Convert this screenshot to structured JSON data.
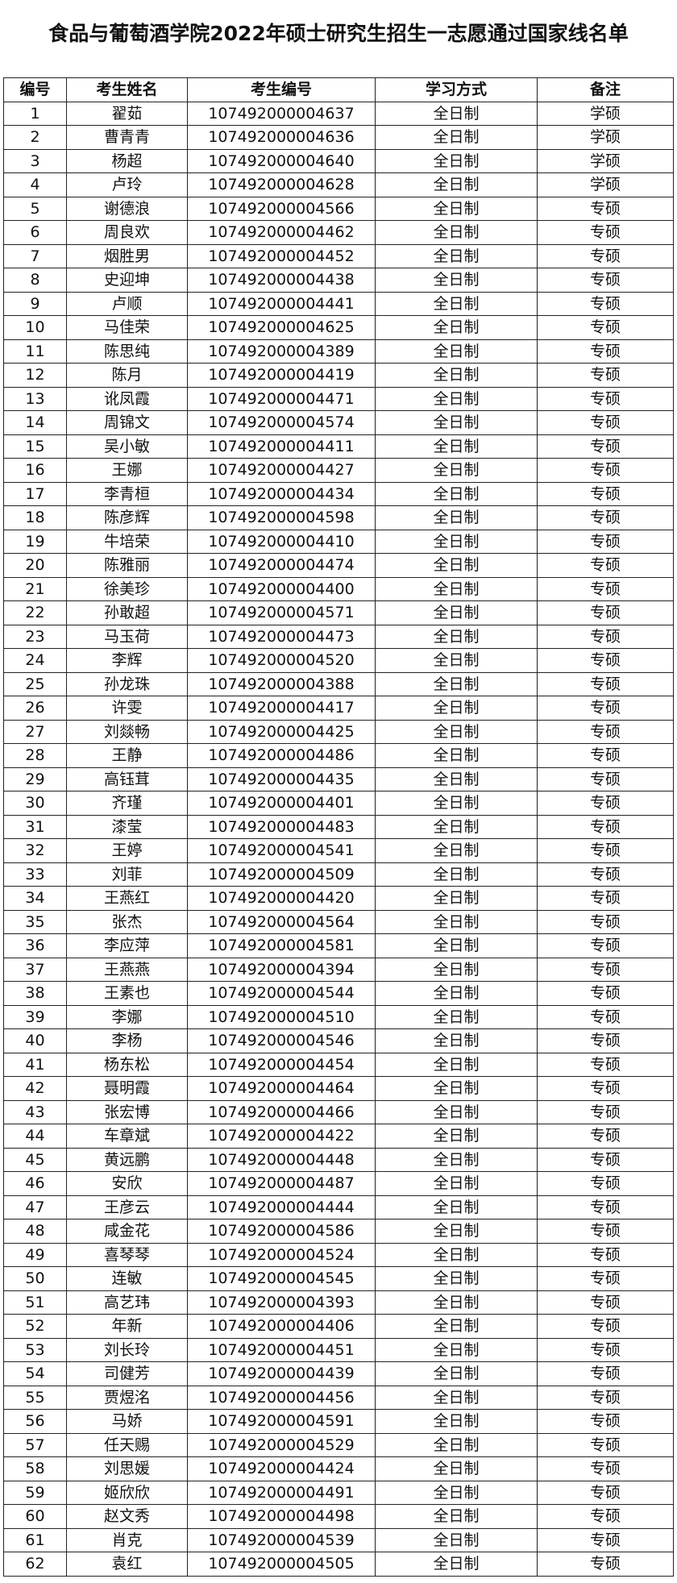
{
  "title": "食品与葡萄酒学院2022年硕士研究生招生一志愿通过国家线名单",
  "table": {
    "header": [
      "编号",
      "考生姓名",
      "考生编号",
      "学习方式",
      "备注"
    ],
    "rows": [
      [
        "1",
        "翟茹",
        "107492000004637",
        "全日制",
        "学硕"
      ],
      [
        "2",
        "曹青青",
        "107492000004636",
        "全日制",
        "学硕"
      ],
      [
        "3",
        "杨超",
        "107492000004640",
        "全日制",
        "学硕"
      ],
      [
        "4",
        "卢玲",
        "107492000004628",
        "全日制",
        "学硕"
      ],
      [
        "5",
        "谢德浪",
        "107492000004566",
        "全日制",
        "专硕"
      ],
      [
        "6",
        "周良欢",
        "107492000004462",
        "全日制",
        "专硕"
      ],
      [
        "7",
        "烟胜男",
        "107492000004452",
        "全日制",
        "专硕"
      ],
      [
        "8",
        "史迎坤",
        "107492000004438",
        "全日制",
        "专硕"
      ],
      [
        "9",
        "卢顺",
        "107492000004441",
        "全日制",
        "专硕"
      ],
      [
        "10",
        "马佳荣",
        "107492000004625",
        "全日制",
        "专硕"
      ],
      [
        "11",
        "陈思纯",
        "107492000004389",
        "全日制",
        "专硕"
      ],
      [
        "12",
        "陈月",
        "107492000004419",
        "全日制",
        "专硕"
      ],
      [
        "13",
        "讹凤霞",
        "107492000004471",
        "全日制",
        "专硕"
      ],
      [
        "14",
        "周锦文",
        "107492000004574",
        "全日制",
        "专硕"
      ],
      [
        "15",
        "吴小敏",
        "107492000004411",
        "全日制",
        "专硕"
      ],
      [
        "16",
        "王娜",
        "107492000004427",
        "全日制",
        "专硕"
      ],
      [
        "17",
        "李青桓",
        "107492000004434",
        "全日制",
        "专硕"
      ],
      [
        "18",
        "陈彦辉",
        "107492000004598",
        "全日制",
        "专硕"
      ],
      [
        "19",
        "牛培荣",
        "107492000004410",
        "全日制",
        "专硕"
      ],
      [
        "20",
        "陈雅丽",
        "107492000004474",
        "全日制",
        "专硕"
      ],
      [
        "21",
        "徐美珍",
        "107492000004400",
        "全日制",
        "专硕"
      ],
      [
        "22",
        "孙敢超",
        "107492000004571",
        "全日制",
        "专硕"
      ],
      [
        "23",
        "马玉荷",
        "107492000004473",
        "全日制",
        "专硕"
      ],
      [
        "24",
        "李辉",
        "107492000004520",
        "全日制",
        "专硕"
      ],
      [
        "25",
        "孙龙珠",
        "107492000004388",
        "全日制",
        "专硕"
      ],
      [
        "26",
        "许雯",
        "107492000004417",
        "全日制",
        "专硕"
      ],
      [
        "27",
        "刘燚畅",
        "107492000004425",
        "全日制",
        "专硕"
      ],
      [
        "28",
        "王静",
        "107492000004486",
        "全日制",
        "专硕"
      ],
      [
        "29",
        "高钰茸",
        "107492000004435",
        "全日制",
        "专硕"
      ],
      [
        "30",
        "齐瑾",
        "107492000004401",
        "全日制",
        "专硕"
      ],
      [
        "31",
        "漆莹",
        "107492000004483",
        "全日制",
        "专硕"
      ],
      [
        "32",
        "王婷",
        "107492000004541",
        "全日制",
        "专硕"
      ],
      [
        "33",
        "刘菲",
        "107492000004509",
        "全日制",
        "专硕"
      ],
      [
        "34",
        "王燕红",
        "107492000004420",
        "全日制",
        "专硕"
      ],
      [
        "35",
        "张杰",
        "107492000004564",
        "全日制",
        "专硕"
      ],
      [
        "36",
        "李应萍",
        "107492000004581",
        "全日制",
        "专硕"
      ],
      [
        "37",
        "王燕燕",
        "107492000004394",
        "全日制",
        "专硕"
      ],
      [
        "38",
        "王素也",
        "107492000004544",
        "全日制",
        "专硕"
      ],
      [
        "39",
        "李娜",
        "107492000004510",
        "全日制",
        "专硕"
      ],
      [
        "40",
        "李杨",
        "107492000004546",
        "全日制",
        "专硕"
      ],
      [
        "41",
        "杨东松",
        "107492000004454",
        "全日制",
        "专硕"
      ],
      [
        "42",
        "聂明霞",
        "107492000004464",
        "全日制",
        "专硕"
      ],
      [
        "43",
        "张宏博",
        "107492000004466",
        "全日制",
        "专硕"
      ],
      [
        "44",
        "车章斌",
        "107492000004422",
        "全日制",
        "专硕"
      ],
      [
        "45",
        "黄远鹏",
        "107492000004448",
        "全日制",
        "专硕"
      ],
      [
        "46",
        "安欣",
        "107492000004487",
        "全日制",
        "专硕"
      ],
      [
        "47",
        "王彦云",
        "107492000004444",
        "全日制",
        "专硕"
      ],
      [
        "48",
        "咸金花",
        "107492000004586",
        "全日制",
        "专硕"
      ],
      [
        "49",
        "喜琴琴",
        "107492000004524",
        "全日制",
        "专硕"
      ],
      [
        "50",
        "连敏",
        "107492000004545",
        "全日制",
        "专硕"
      ],
      [
        "51",
        "高艺玮",
        "107492000004393",
        "全日制",
        "专硕"
      ],
      [
        "52",
        "年新",
        "107492000004406",
        "全日制",
        "专硕"
      ],
      [
        "53",
        "刘长玲",
        "107492000004451",
        "全日制",
        "专硕"
      ],
      [
        "54",
        "司健芳",
        "107492000004439",
        "全日制",
        "专硕"
      ],
      [
        "55",
        "贾煜洺",
        "107492000004456",
        "全日制",
        "专硕"
      ],
      [
        "56",
        "马娇",
        "107492000004591",
        "全日制",
        "专硕"
      ],
      [
        "57",
        "任天赐",
        "107492000004529",
        "全日制",
        "专硕"
      ],
      [
        "58",
        "刘思媛",
        "107492000004424",
        "全日制",
        "专硕"
      ],
      [
        "59",
        "姬欣欣",
        "107492000004491",
        "全日制",
        "专硕"
      ],
      [
        "60",
        "赵文秀",
        "107492000004498",
        "全日制",
        "专硕"
      ],
      [
        "61",
        "肖克",
        "107492000004539",
        "全日制",
        "专硕"
      ],
      [
        "62",
        "袁红",
        "107492000004505",
        "全日制",
        "专硕"
      ]
    ]
  }
}
